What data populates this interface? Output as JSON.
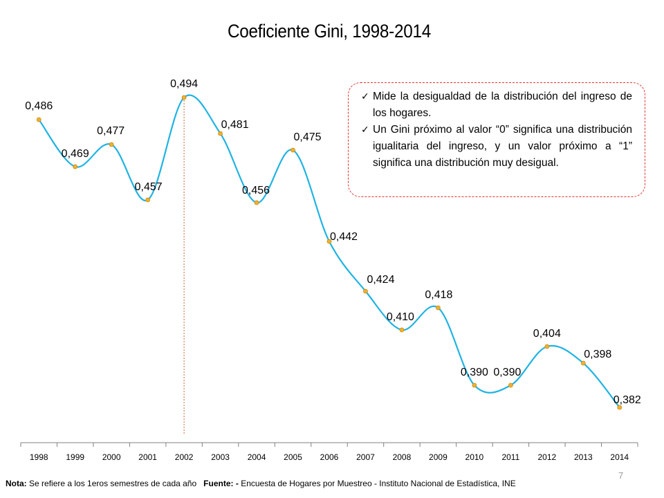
{
  "chart_data": {
    "type": "line",
    "title": "Coeficiente Gini, 1998-2014",
    "categories": [
      "1998",
      "1999",
      "2000",
      "2001",
      "2002",
      "2003",
      "2004",
      "2005",
      "2006",
      "2007",
      "2008",
      "2009",
      "2010",
      "2011",
      "2012",
      "2013",
      "2014"
    ],
    "values": [
      0.486,
      0.469,
      0.477,
      0.457,
      0.494,
      0.481,
      0.456,
      0.475,
      0.442,
      0.424,
      0.41,
      0.418,
      0.39,
      0.39,
      0.404,
      0.398,
      0.382
    ],
    "data_labels": [
      "0,486",
      "0,469",
      "0,477",
      "0,457",
      "0,494",
      "0,481",
      "0,456",
      "0,475",
      "0,442",
      "0,424",
      "0,410",
      "0,418",
      "0,390",
      "0,390",
      "0,404",
      "0,398",
      "0,382"
    ],
    "smoothed": true,
    "grid": false,
    "legend": "none",
    "colors": {
      "line": "#1fb3e3",
      "marker": "#f0b030",
      "marker_stroke": "#c78a10",
      "reference_line": "#d0602a"
    },
    "reference_line_at": "2002"
  },
  "info_box": {
    "items": [
      "Mide la desigualdad de la distribución del ingreso de los hogares.",
      "Un Gini próximo al valor “0” significa una distribución igualitaria del ingreso, y un valor próximo a “1” significa una distribución muy desigual."
    ],
    "border_color": "#e03030"
  },
  "footnote": {
    "nota_label": "Nota:",
    "nota_text": "Se refiere a los 1eros semestres de cada año",
    "fuente_label": "Fuente: -",
    "fuente_text": "Encuesta de Hogares por Muestreo  - Instituto Nacional de Estadística, INE"
  },
  "page_number": "7"
}
